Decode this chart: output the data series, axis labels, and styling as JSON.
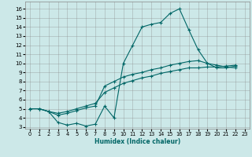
{
  "xlabel": "Humidex (Indice chaleur)",
  "bg_color": "#cce8e8",
  "grid_color": "#888888",
  "line_color": "#006666",
  "xlim": [
    -0.5,
    23.5
  ],
  "ylim": [
    2.8,
    16.8
  ],
  "yticks": [
    3,
    4,
    5,
    6,
    7,
    8,
    9,
    10,
    11,
    12,
    13,
    14,
    15,
    16
  ],
  "xticks": [
    0,
    1,
    2,
    3,
    4,
    5,
    6,
    7,
    8,
    9,
    10,
    11,
    12,
    13,
    14,
    15,
    16,
    17,
    18,
    19,
    20,
    21,
    22,
    23
  ],
  "line1_x": [
    0,
    1,
    2,
    3,
    4,
    5,
    6,
    7,
    8,
    9,
    10,
    11,
    12,
    13,
    14,
    15,
    16,
    17,
    18,
    19,
    20,
    21,
    22
  ],
  "line1_y": [
    5,
    5,
    4.7,
    3.5,
    3.2,
    3.4,
    3.1,
    3.3,
    5.3,
    4.0,
    10.0,
    12.0,
    14.0,
    14.3,
    14.5,
    15.5,
    16.0,
    13.7,
    11.5,
    10.0,
    9.5,
    9.5,
    9.7
  ],
  "line2_x": [
    0,
    1,
    2,
    3,
    4,
    5,
    6,
    7,
    8,
    9,
    10,
    11,
    12,
    13,
    14,
    15,
    16,
    17,
    18,
    19,
    20,
    21,
    22
  ],
  "line2_y": [
    5,
    5,
    4.7,
    4.5,
    4.7,
    5.0,
    5.3,
    5.6,
    6.8,
    7.3,
    7.8,
    8.1,
    8.4,
    8.6,
    8.9,
    9.1,
    9.3,
    9.5,
    9.5,
    9.6,
    9.6,
    9.7,
    9.8
  ],
  "line3_x": [
    0,
    1,
    2,
    3,
    4,
    5,
    6,
    7,
    8,
    9,
    10,
    11,
    12,
    13,
    14,
    15,
    16,
    17,
    18,
    19,
    20,
    21,
    22
  ],
  "line3_y": [
    5,
    5,
    4.7,
    4.3,
    4.5,
    4.8,
    5.1,
    5.3,
    7.5,
    8.0,
    8.5,
    8.8,
    9.0,
    9.3,
    9.5,
    9.8,
    10.0,
    10.2,
    10.3,
    10.0,
    9.8,
    9.6,
    9.5
  ]
}
